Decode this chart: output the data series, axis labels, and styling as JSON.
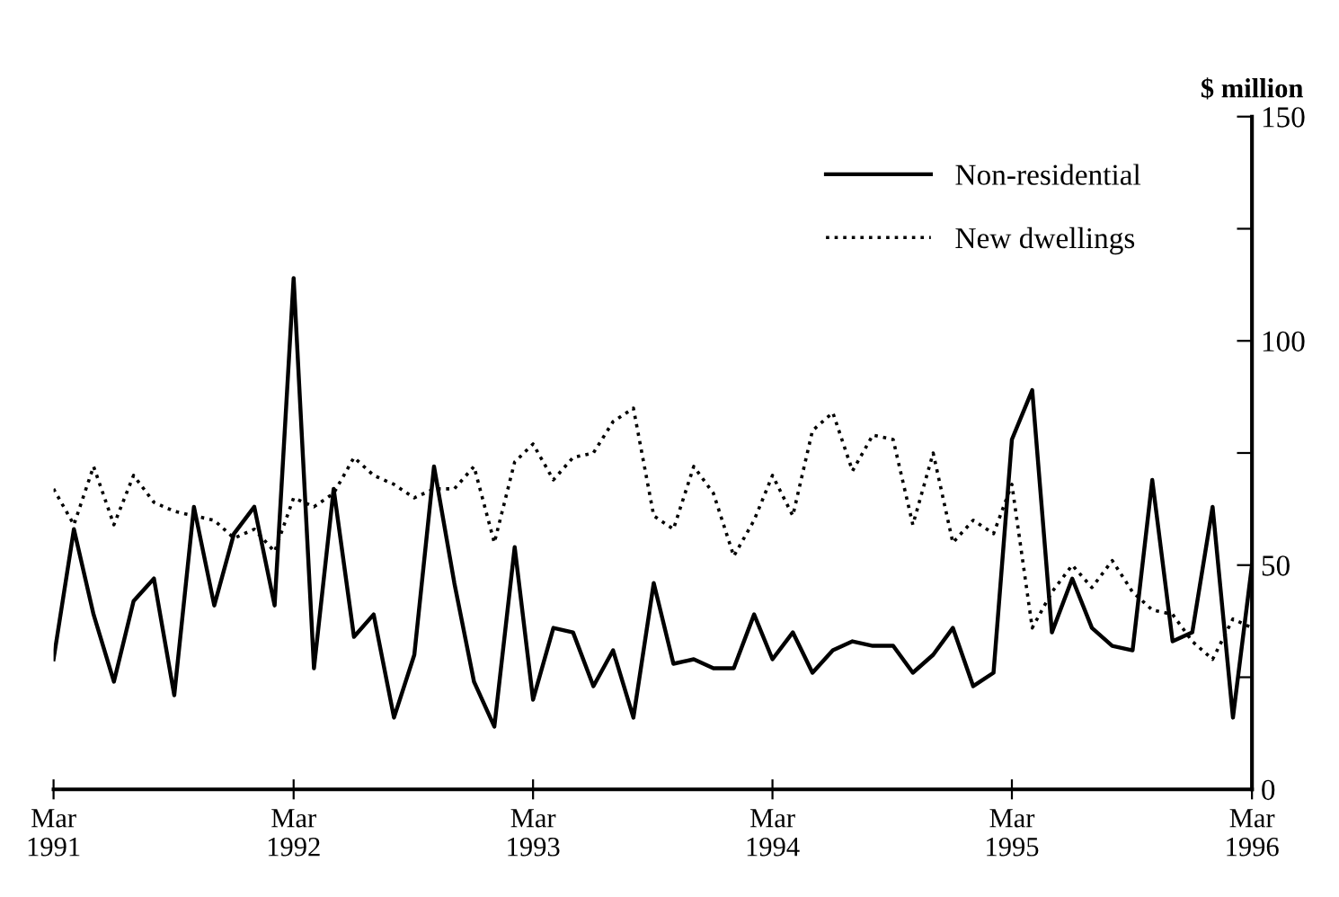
{
  "chart_data": {
    "type": "line",
    "ylabel": "$ million",
    "x": [
      "1991-03",
      "1991-04",
      "1991-05",
      "1991-06",
      "1991-07",
      "1991-08",
      "1991-09",
      "1991-10",
      "1991-11",
      "1991-12",
      "1992-01",
      "1992-02",
      "1992-03",
      "1992-04",
      "1992-05",
      "1992-06",
      "1992-07",
      "1992-08",
      "1992-09",
      "1992-10",
      "1992-11",
      "1992-12",
      "1993-01",
      "1993-02",
      "1993-03",
      "1993-04",
      "1993-05",
      "1993-06",
      "1993-07",
      "1993-08",
      "1993-09",
      "1993-10",
      "1993-11",
      "1993-12",
      "1994-01",
      "1994-02",
      "1994-03",
      "1994-04",
      "1994-05",
      "1994-06",
      "1994-07",
      "1994-08",
      "1994-09",
      "1994-10",
      "1994-11",
      "1994-12",
      "1995-01",
      "1995-02",
      "1995-03",
      "1995-04",
      "1995-05",
      "1995-06",
      "1995-07",
      "1995-08",
      "1995-09",
      "1995-10",
      "1995-11",
      "1995-12",
      "1996-01",
      "1996-02",
      "1996-03"
    ],
    "series": [
      {
        "name": "Non-residential",
        "color": "#000000",
        "line_style": "solid",
        "values": [
          29,
          58,
          39,
          24,
          42,
          47,
          21,
          63,
          41,
          57,
          63,
          41,
          114,
          27,
          67,
          34,
          39,
          16,
          30,
          72,
          46,
          24,
          14,
          54,
          20,
          36,
          35,
          23,
          31,
          16,
          46,
          28,
          29,
          27,
          27,
          39,
          29,
          35,
          26,
          31,
          33,
          32,
          32,
          26,
          30,
          36,
          23,
          26,
          78,
          89,
          35,
          47,
          36,
          32,
          31,
          69,
          33,
          35,
          63,
          16,
          50
        ]
      },
      {
        "name": "New dwellings",
        "color": "#000000",
        "line_style": "dotted",
        "values": [
          67,
          59,
          72,
          59,
          70,
          64,
          62,
          61,
          60,
          56,
          58,
          53,
          65,
          63,
          66,
          74,
          70,
          68,
          65,
          67,
          67,
          72,
          55,
          73,
          77,
          69,
          74,
          75,
          82,
          85,
          61,
          58,
          72,
          66,
          52,
          60,
          70,
          61,
          80,
          84,
          71,
          79,
          78,
          59,
          75,
          55,
          60,
          57,
          68,
          36,
          44,
          50,
          45,
          51,
          44,
          40,
          39,
          33,
          29,
          38,
          36
        ]
      }
    ],
    "xlim": [
      "1991-03",
      "1996-03"
    ],
    "xticks": [
      {
        "value": "1991-03",
        "label": "Mar\n1991"
      },
      {
        "value": "1992-03",
        "label": "Mar\n1992"
      },
      {
        "value": "1993-03",
        "label": "Mar\n1993"
      },
      {
        "value": "1994-03",
        "label": "Mar\n1994"
      },
      {
        "value": "1995-03",
        "label": "Mar\n1995"
      },
      {
        "value": "1996-03",
        "label": "Mar\n1996"
      }
    ],
    "ylim": [
      0,
      150
    ],
    "yticks": [
      0,
      {
        "value": 25,
        "label": null
      },
      50,
      {
        "value": 75,
        "label": null
      },
      100,
      {
        "value": 125,
        "label": null
      },
      150
    ],
    "grid": false,
    "legend": "top right",
    "marker": "none"
  }
}
